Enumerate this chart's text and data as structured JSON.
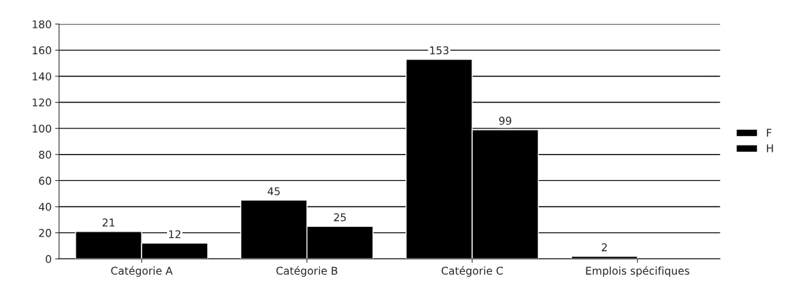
{
  "chart_data": {
    "type": "bar",
    "categories": [
      "Catégorie A",
      "Catégorie B",
      "Catégorie C",
      "Emplois spécifiques"
    ],
    "series": [
      {
        "name": "F",
        "color": "#000000",
        "values": [
          21,
          45,
          153,
          2
        ],
        "value_labels": [
          "21",
          "45",
          "153",
          "2"
        ]
      },
      {
        "name": "H",
        "color": "#000000",
        "values": [
          12,
          25,
          99,
          null
        ],
        "value_labels": [
          "12",
          "25",
          "99",
          null
        ]
      }
    ],
    "ylim": [
      0,
      180
    ],
    "yticks": [
      0,
      20,
      40,
      60,
      80,
      100,
      120,
      140,
      160,
      180
    ],
    "grid": "y",
    "legend": "right"
  }
}
